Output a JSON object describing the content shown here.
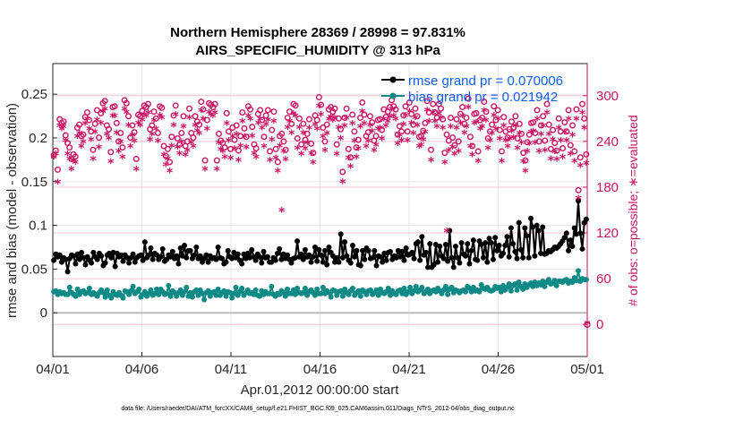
{
  "chart_data": {
    "type": "line",
    "title_line1": "Northern Hemisphere 28369 / 28998 = 97.831%",
    "title_line2": "AIRS_SPECIFIC_HUMIDITY @ 313 hPa",
    "xlabel": "Apr.01,2012 00:00:00 start",
    "ylabel_left": "rmse and bias (model - observation)",
    "ylabel_right": "# of obs: o=possible; ∗=evaluated",
    "footnote": "data file: /Users/raeder/DAI/ATM_forcXX/CAM6_setup/f.e21.FHIST_BGC.f09_025.CAM6assim.011/Diags_NTrS_2012-04/obs_diag_output.nc",
    "xlim": [
      0,
      30
    ],
    "ylim_left": [
      -0.05,
      0.285
    ],
    "ylim_right": [
      -42,
      342
    ],
    "x_ticks": [
      0,
      5,
      10,
      15,
      20,
      25,
      30
    ],
    "x_tick_labels": [
      "04/01",
      "04/06",
      "04/11",
      "04/16",
      "04/21",
      "04/26",
      "05/01"
    ],
    "y_ticks_left": [
      0,
      0.05,
      0.1,
      0.15,
      0.2,
      0.25
    ],
    "y_tick_labels_left": [
      "0",
      "0.05",
      "0.1",
      "0.15",
      "0.2",
      "0.25"
    ],
    "y_ticks_right": [
      0,
      60,
      120,
      180,
      240,
      300
    ],
    "y_tick_labels_right": [
      "0",
      "60",
      "120",
      "180",
      "240",
      "300"
    ],
    "legend": [
      {
        "label": "rmse grand pr = 0.070006",
        "color": "#000000"
      },
      {
        "label": "bias grand pr = 0.021942",
        "color": "#0f8a86"
      }
    ],
    "series": [
      {
        "name": "rmse",
        "color": "#000000",
        "marker": "circle",
        "values": [
          0.06,
          0.067,
          0.064,
          0.066,
          0.058,
          0.063,
          0.061,
          0.047,
          0.062,
          0.066,
          0.065,
          0.056,
          0.067,
          0.061,
          0.069,
          0.063,
          0.055,
          0.064,
          0.06,
          0.057,
          0.069,
          0.064,
          0.061,
          0.068,
          0.065,
          0.054,
          0.057,
          0.066,
          0.068,
          0.063,
          0.069,
          0.053,
          0.068,
          0.064,
          0.066,
          0.059,
          0.066,
          0.063,
          0.057,
          0.063,
          0.067,
          0.058,
          0.063,
          0.065,
          0.066,
          0.06,
          0.081,
          0.063,
          0.066,
          0.074,
          0.061,
          0.068,
          0.066,
          0.061,
          0.064,
          0.073,
          0.059,
          0.061,
          0.066,
          0.064,
          0.07,
          0.062,
          0.065,
          0.056,
          0.074,
          0.065,
          0.077,
          0.063,
          0.071,
          0.071,
          0.062,
          0.066,
          0.075,
          0.062,
          0.065,
          0.058,
          0.062,
          0.066,
          0.058,
          0.065,
          0.062,
          0.063,
          0.061,
          0.075,
          0.063,
          0.062,
          0.056,
          0.058,
          0.071,
          0.064,
          0.062,
          0.069,
          0.063,
          0.067,
          0.06,
          0.056,
          0.067,
          0.062,
          0.068,
          0.063,
          0.072,
          0.064,
          0.06,
          0.067,
          0.064,
          0.057,
          0.07,
          0.063,
          0.064,
          0.058,
          0.058,
          0.063,
          0.06,
          0.068,
          0.073,
          0.061,
          0.067,
          0.062,
          0.066,
          0.061,
          0.057,
          0.062,
          0.063,
          0.082,
          0.064,
          0.067,
          0.061,
          0.072,
          0.064,
          0.066,
          0.058,
          0.064,
          0.075,
          0.059,
          0.072,
          0.066,
          0.058,
          0.071,
          0.055,
          0.075,
          0.069,
          0.065,
          0.058,
          0.063,
          0.058,
          0.09,
          0.063,
          0.081,
          0.065,
          0.06,
          0.057,
          0.077,
          0.064,
          0.071,
          0.055,
          0.054,
          0.071,
          0.061,
          0.074,
          0.071,
          0.062,
          0.063,
          0.071,
          0.054,
          0.065,
          0.064,
          0.058,
          0.068,
          0.06,
          0.069,
          0.07,
          0.061,
          0.065,
          0.063,
          0.071,
          0.064,
          0.07,
          0.06,
          0.074,
          0.066,
          0.067,
          0.069,
          0.062,
          0.079,
          0.081,
          0.06,
          0.087,
          0.066,
          0.069,
          0.052,
          0.079,
          0.052,
          0.055,
          0.078,
          0.058,
          0.076,
          0.065,
          0.062,
          0.078,
          0.059,
          0.094,
          0.063,
          0.052,
          0.076,
          0.063,
          0.057,
          0.08,
          0.067,
          0.065,
          0.079,
          0.056,
          0.071,
          0.083,
          0.061,
          0.06,
          0.082,
          0.078,
          0.063,
          0.08,
          0.058,
          0.085,
          0.08,
          0.061,
          0.086,
          0.071,
          0.077,
          0.065,
          0.068,
          0.077,
          0.087,
          0.064,
          0.097,
          0.079,
          0.07,
          0.062,
          0.103,
          0.072,
          0.063,
          0.097,
          0.088,
          0.063,
          0.108,
          0.098,
          0.065,
          0.1,
          0.094,
          0.068,
          0.098,
          0.067,
          0.068,
          0.071,
          0.07,
          0.072,
          0.075,
          0.074,
          0.076,
          0.079,
          0.082,
          0.086,
          0.091,
          0.071,
          0.083,
          0.076,
          0.097,
          0.09,
          0.128,
          0.091,
          0.073,
          0.103,
          0.107
        ]
      },
      {
        "name": "bias",
        "color": "#0f8a86",
        "marker": "circle",
        "values": [
          0.024,
          0.025,
          0.021,
          0.024,
          0.022,
          0.023,
          0.021,
          0.021,
          0.029,
          0.023,
          0.021,
          0.019,
          0.027,
          0.021,
          0.024,
          0.025,
          0.022,
          0.023,
          0.028,
          0.021,
          0.023,
          0.021,
          0.019,
          0.023,
          0.026,
          0.023,
          0.018,
          0.026,
          0.02,
          0.017,
          0.024,
          0.021,
          0.02,
          0.023,
          0.02,
          0.017,
          0.025,
          0.024,
          0.021,
          0.025,
          0.03,
          0.022,
          0.024,
          0.027,
          0.018,
          0.021,
          0.024,
          0.019,
          0.022,
          0.026,
          0.02,
          0.022,
          0.027,
          0.021,
          0.027,
          0.024,
          0.021,
          0.022,
          0.031,
          0.019,
          0.025,
          0.023,
          0.019,
          0.023,
          0.026,
          0.02,
          0.024,
          0.029,
          0.019,
          0.023,
          0.018,
          0.024,
          0.026,
          0.02,
          0.026,
          0.022,
          0.015,
          0.023,
          0.025,
          0.019,
          0.023,
          0.024,
          0.02,
          0.027,
          0.02,
          0.023,
          0.025,
          0.019,
          0.024,
          0.023,
          0.017,
          0.022,
          0.029,
          0.02,
          0.024,
          0.028,
          0.02,
          0.023,
          0.026,
          0.022,
          0.023,
          0.021,
          0.026,
          0.02,
          0.019,
          0.025,
          0.021,
          0.024,
          0.022,
          0.022,
          0.03,
          0.021,
          0.019,
          0.022,
          0.021,
          0.025,
          0.023,
          0.019,
          0.027,
          0.022,
          0.022,
          0.026,
          0.021,
          0.028,
          0.023,
          0.022,
          0.023,
          0.028,
          0.02,
          0.024,
          0.026,
          0.023,
          0.02,
          0.027,
          0.022,
          0.022,
          0.029,
          0.022,
          0.025,
          0.023,
          0.018,
          0.026,
          0.025,
          0.02,
          0.024,
          0.025,
          0.019,
          0.027,
          0.023,
          0.021,
          0.025,
          0.028,
          0.02,
          0.023,
          0.025,
          0.019,
          0.026,
          0.024,
          0.021,
          0.025,
          0.026,
          0.021,
          0.023,
          0.026,
          0.02,
          0.027,
          0.023,
          0.022,
          0.024,
          0.028,
          0.02,
          0.025,
          0.022,
          0.021,
          0.025,
          0.026,
          0.022,
          0.028,
          0.021,
          0.024,
          0.029,
          0.022,
          0.025,
          0.03,
          0.024,
          0.026,
          0.029,
          0.022,
          0.024,
          0.027,
          0.022,
          0.025,
          0.026,
          0.024,
          0.028,
          0.025,
          0.022,
          0.026,
          0.03,
          0.021,
          0.027,
          0.029,
          0.023,
          0.026,
          0.025,
          0.023,
          0.025,
          0.026,
          0.024,
          0.03,
          0.028,
          0.024,
          0.029,
          0.025,
          0.026,
          0.024,
          0.032,
          0.028,
          0.027,
          0.029,
          0.026,
          0.025,
          0.026,
          0.03,
          0.028,
          0.029,
          0.024,
          0.031,
          0.026,
          0.029,
          0.033,
          0.025,
          0.031,
          0.033,
          0.026,
          0.035,
          0.03,
          0.027,
          0.033,
          0.029,
          0.032,
          0.034,
          0.03,
          0.035,
          0.031,
          0.034,
          0.032,
          0.036,
          0.03,
          0.035,
          0.038,
          0.033,
          0.034,
          0.037,
          0.031,
          0.036,
          0.036,
          0.035,
          0.037,
          0.038,
          0.034,
          0.036,
          0.035,
          0.04,
          0.037,
          0.048,
          0.036,
          0.039,
          0.038,
          0.038
        ]
      },
      {
        "name": "possible",
        "color": "#cc1466",
        "marker": "o",
        "axis": "right",
        "values": [
          222,
          228,
          203,
          269,
          264,
          266,
          248,
          238,
          232,
          217,
          223,
          220,
          258,
          262,
          247,
          249,
          272,
          278,
          268,
          253,
          229,
          263,
          281,
          245,
          277,
          290,
          293,
          261,
          256,
          226,
          285,
          286,
          264,
          240,
          251,
          232,
          294,
          290,
          273,
          245,
          261,
          252,
          217,
          275,
          273,
          280,
          287,
          285,
          289,
          256,
          261,
          279,
          270,
          251,
          286,
          284,
          234,
          221,
          230,
          213,
          246,
          274,
          287,
          244,
          236,
          251,
          273,
          234,
          240,
          283,
          251,
          245,
          273,
          266,
          262,
          292,
          282,
          215,
          268,
          290,
          288,
          285,
          289,
          215,
          250,
          241,
          238,
          232,
          277,
          253,
          230,
          258,
          242,
          261,
          228,
          247,
          278,
          257,
          246,
          286,
          282,
          259,
          236,
          231,
          276,
          281,
          268,
          246,
          274,
          281,
          227,
          255,
          279,
          230,
          213,
          247,
          250,
          240,
          229,
          271,
          279,
          263,
          289,
          287,
          244,
          270,
          236,
          263,
          242,
          250,
          269,
          237,
          225,
          274,
          268,
          298,
          288,
          258,
          240,
          262,
          282,
          285,
          279,
          283,
          236,
          270,
          256,
          200,
          271,
          283,
          230,
          219,
          275,
          253,
          232,
          242,
          271,
          291,
          275,
          247,
          252,
          273,
          265,
          241,
          247,
          268,
          269,
          255,
          282,
          272,
          279,
          285,
          294,
          286,
          282,
          249,
          260,
          253,
          274,
          286,
          253,
          291,
          276,
          262,
          283,
          273,
          246,
          247,
          254,
          264,
          293,
          278,
          229,
          289,
          278,
          271,
          289,
          283,
          269,
          225,
          249,
          241,
          271,
          245,
          235,
          269,
          240,
          276,
          285,
          263,
          271,
          296,
          246,
          234,
          276,
          277,
          227,
          268,
          271,
          292,
          279,
          244,
          253,
          262,
          286,
          268,
          281,
          255,
          227,
          272,
          253,
          245,
          256,
          266,
          258,
          273,
          244,
          263,
          250,
          225,
          215,
          239,
          249,
          264,
          265,
          251,
          281,
          240,
          261,
          273,
          241,
          289,
          262,
          230,
          255,
          238,
          228,
          270,
          253,
          231,
          265,
          253,
          281,
          235,
          261,
          227,
          282,
          176,
          219,
          289,
          270,
          223
        ]
      },
      {
        "name": "evaluated",
        "color": "#cc1466",
        "marker": "*",
        "axis": "right",
        "values": [
          218,
          222,
          185,
          259,
          255,
          258,
          240,
          222,
          216,
          202,
          214,
          211,
          245,
          249,
          232,
          238,
          262,
          268,
          255,
          241,
          216,
          251,
          267,
          231,
          263,
          278,
          281,
          248,
          243,
          212,
          272,
          272,
          250,
          226,
          238,
          218,
          281,
          277,
          260,
          232,
          247,
          239,
          202,
          263,
          260,
          267,
          274,
          272,
          276,
          241,
          248,
          266,
          255,
          239,
          273,
          270,
          221,
          208,
          216,
          200,
          233,
          260,
          274,
          231,
          223,
          238,
          258,
          221,
          227,
          270,
          237,
          232,
          260,
          253,
          249,
          279,
          268,
          202,
          255,
          277,
          274,
          272,
          276,
          202,
          237,
          228,
          226,
          218,
          262,
          240,
          217,
          245,
          229,
          248,
          214,
          233,
          265,
          245,
          231,
          272,
          268,
          246,
          223,
          218,
          263,
          268,
          256,
          232,
          261,
          267,
          214,
          241,
          265,
          217,
          200,
          233,
          148,
          226,
          215,
          257,
          265,
          250,
          275,
          272,
          230,
          257,
          222,
          250,
          229,
          237,
          256,
          223,
          211,
          261,
          255,
          285,
          274,
          245,
          227,
          249,
          268,
          271,
          266,
          270,
          222,
          257,
          243,
          186,
          259,
          269,
          217,
          206,
          262,
          239,
          218,
          229,
          258,
          278,
          262,
          232,
          239,
          260,
          252,
          227,
          234,
          255,
          256,
          242,
          268,
          259,
          265,
          271,
          281,
          272,
          268,
          236,
          247,
          240,
          261,
          273,
          240,
          278,
          263,
          249,
          270,
          260,
          232,
          234,
          241,
          251,
          280,
          265,
          214,
          276,
          265,
          258,
          275,
          270,
          256,
          211,
          121,
          227,
          258,
          231,
          222,
          256,
          226,
          263,
          272,
          250,
          258,
          283,
          232,
          221,
          263,
          264,
          213,
          255,
          258,
          279,
          266,
          230,
          240,
          249,
          273,
          255,
          268,
          242,
          213,
          259,
          240,
          232,
          242,
          252,
          244,
          259,
          230,
          249,
          237,
          212,
          200,
          226,
          236,
          251,
          252,
          237,
          268,
          226,
          248,
          259,
          227,
          276,
          248,
          216,
          241,
          225,
          215,
          256,
          240,
          218,
          251,
          240,
          268,
          222,
          247,
          213,
          268,
          164,
          207,
          276,
          256,
          210
        ]
      }
    ],
    "zero_markers": [
      {
        "value": 0,
        "axis": "right",
        "color": "#cc1466"
      }
    ]
  }
}
